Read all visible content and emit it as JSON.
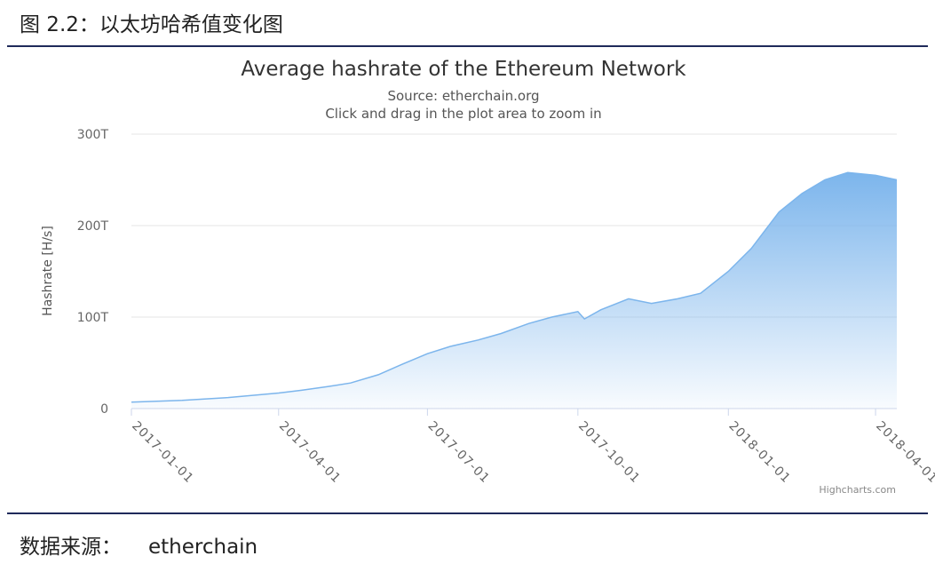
{
  "figure": {
    "caption": "图 2.2：以太坊哈希值变化图",
    "source_label": "数据来源：",
    "source": "etherchain"
  },
  "chart_data": {
    "type": "area",
    "title": "Average hashrate of the Ethereum Network",
    "subtitle": [
      "Source: etherchain.org",
      "Click and drag in the plot area to zoom in"
    ],
    "y_label": "Hashrate [H/s]",
    "credit": "Highcharts.com",
    "x": [
      "2017-01-01",
      "2017-02-01",
      "2017-03-01",
      "2017-04-01",
      "2017-04-15",
      "2017-05-01",
      "2017-05-15",
      "2017-06-01",
      "2017-06-15",
      "2017-07-01",
      "2017-07-15",
      "2017-08-01",
      "2017-08-15",
      "2017-09-01",
      "2017-09-15",
      "2017-10-01",
      "2017-10-05",
      "2017-10-15",
      "2017-11-01",
      "2017-11-15",
      "2017-12-01",
      "2017-12-15",
      "2018-01-01",
      "2018-01-15",
      "2018-02-01",
      "2018-02-15",
      "2018-03-01",
      "2018-03-15",
      "2018-04-01",
      "2018-04-14"
    ],
    "series": [
      {
        "name": "Hashrate",
        "color": "#7cb5ec",
        "values": [
          7,
          9,
          12,
          17,
          20,
          24,
          28,
          37,
          48,
          60,
          68,
          75,
          82,
          93,
          100,
          106,
          98,
          108,
          120,
          115,
          120,
          126,
          150,
          175,
          215,
          235,
          250,
          258,
          255,
          250
        ]
      }
    ],
    "xlim": [
      "2017-01-01",
      "2018-04-14"
    ],
    "xticks": [
      "2017-01-01",
      "2017-04-01",
      "2017-07-01",
      "2017-10-01",
      "2018-01-01",
      "2018-04-01"
    ],
    "ylim": [
      0,
      300
    ],
    "yticks": [
      0,
      {
        "value": 100,
        "label": "100T"
      },
      {
        "value": 200,
        "label": "200T"
      },
      {
        "value": 300,
        "label": "300T"
      }
    ],
    "grid": true
  }
}
